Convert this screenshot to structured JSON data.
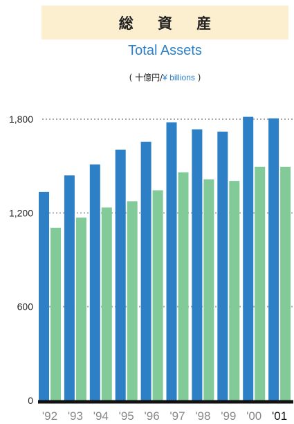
{
  "header": {
    "title_ja": "総 資 産",
    "title_en": "Total Assets",
    "unit_open": "(",
    "unit_ja": "十億円/",
    "unit_en": "¥ billions",
    "unit_close": ")"
  },
  "colors": {
    "series_blue": "#2d7fc6",
    "series_green": "#82cb98",
    "banner": "#fcefcf",
    "axis": "#111111",
    "grid": "#aaaaaa"
  },
  "chart_data": {
    "type": "bar",
    "categories": [
      "'92",
      "'93",
      "'94",
      "'95",
      "'96",
      "'97",
      "'98",
      "'99",
      "'00",
      "'01"
    ],
    "series": [
      {
        "color": "#2d7fc6",
        "values": [
          1335,
          1440,
          1510,
          1605,
          1655,
          1780,
          1735,
          1720,
          1815,
          1805
        ]
      },
      {
        "color": "#82cb98",
        "values": [
          1105,
          1170,
          1235,
          1275,
          1345,
          1460,
          1415,
          1405,
          1495,
          1495
        ]
      }
    ],
    "ylim": [
      0,
      1800
    ],
    "yticks": [
      "0",
      "600",
      "1,200",
      "1,800"
    ],
    "ytick_values": [
      0,
      600,
      1200,
      1800
    ],
    "grid": true
  }
}
